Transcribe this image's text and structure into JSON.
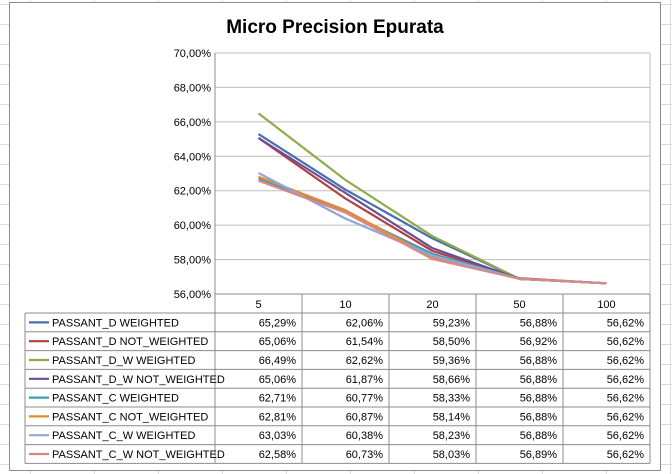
{
  "chart_data": {
    "type": "line",
    "title": "Micro Precision Epurata",
    "categories": [
      "5",
      "10",
      "20",
      "50",
      "100"
    ],
    "ylim": [
      56,
      70
    ],
    "y_ticks": [
      "56,00%",
      "58,00%",
      "60,00%",
      "62,00%",
      "64,00%",
      "66,00%",
      "68,00%",
      "70,00%"
    ],
    "grid": true,
    "legend": "data-table",
    "series": [
      {
        "name": "PASSANT_D WEIGHTED",
        "color": "#4a6fae",
        "values": [
          65.29,
          62.06,
          59.23,
          56.88,
          56.62
        ],
        "labels": [
          "65,29%",
          "62,06%",
          "59,23%",
          "56,88%",
          "56,62%"
        ]
      },
      {
        "name": "PASSANT_D NOT_WEIGHTED",
        "color": "#b0413e",
        "values": [
          65.06,
          61.54,
          58.5,
          56.92,
          56.62
        ],
        "labels": [
          "65,06%",
          "61,54%",
          "58,50%",
          "56,92%",
          "56,62%"
        ]
      },
      {
        "name": "PASSANT_D_W WEIGHTED",
        "color": "#8ead48",
        "values": [
          66.49,
          62.62,
          59.36,
          56.88,
          56.62
        ],
        "labels": [
          "66,49%",
          "62,62%",
          "59,36%",
          "56,88%",
          "56,62%"
        ]
      },
      {
        "name": "PASSANT_D_W NOT_WEIGHTED",
        "color": "#6e4d93",
        "values": [
          65.06,
          61.87,
          58.66,
          56.88,
          56.62
        ],
        "labels": [
          "65,06%",
          "61,87%",
          "58,66%",
          "56,88%",
          "56,62%"
        ]
      },
      {
        "name": "PASSANT_C WEIGHTED",
        "color": "#3e9cb8",
        "values": [
          62.71,
          60.77,
          58.33,
          56.88,
          56.62
        ],
        "labels": [
          "62,71%",
          "60,77%",
          "58,33%",
          "56,88%",
          "56,62%"
        ]
      },
      {
        "name": "PASSANT_C NOT_WEIGHTED",
        "color": "#e68a2e",
        "values": [
          62.81,
          60.87,
          58.14,
          56.88,
          56.62
        ],
        "labels": [
          "62,81%",
          "60,87%",
          "58,14%",
          "56,88%",
          "56,62%"
        ]
      },
      {
        "name": "PASSANT_C_W WEIGHTED",
        "color": "#8fa8d4",
        "values": [
          63.03,
          60.38,
          58.23,
          56.88,
          56.62
        ],
        "labels": [
          "63,03%",
          "60,38%",
          "58,23%",
          "56,88%",
          "56,62%"
        ]
      },
      {
        "name": "PASSANT_C_W NOT_WEIGHTED",
        "color": "#d9888a",
        "values": [
          62.58,
          60.73,
          58.03,
          56.89,
          56.62
        ],
        "labels": [
          "62,58%",
          "60,73%",
          "58,03%",
          "56,89%",
          "56,62%"
        ]
      }
    ]
  }
}
